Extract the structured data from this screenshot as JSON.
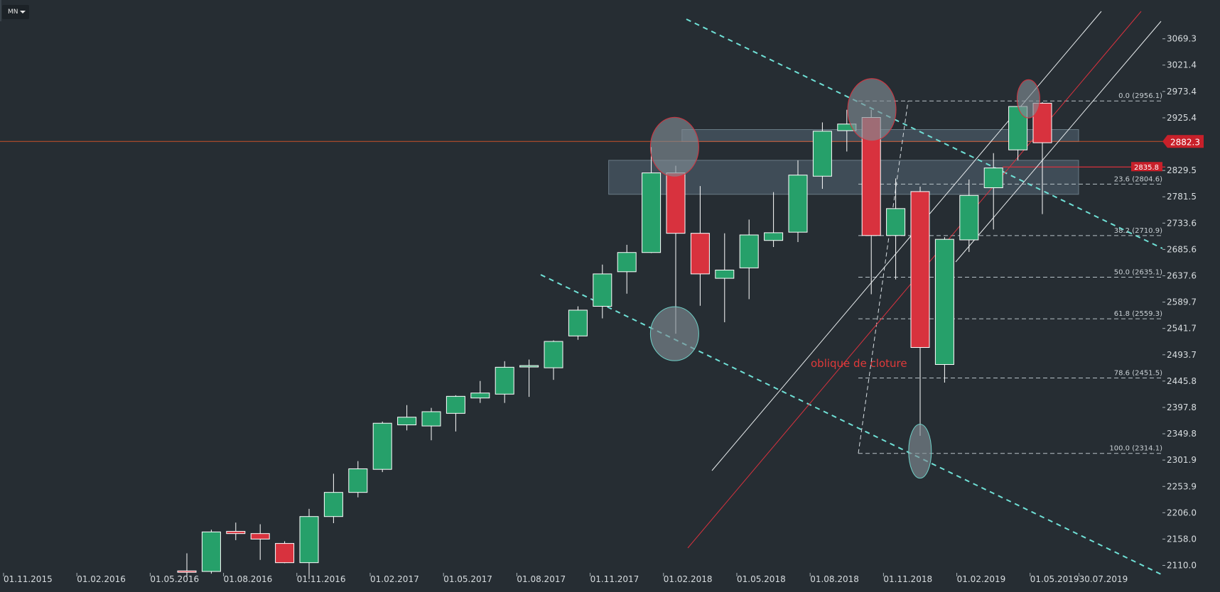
{
  "toolbar": {
    "timeframe_label": "MN"
  },
  "colors": {
    "background": "#262d33",
    "bull": "#26a06a",
    "bear": "#d8323e",
    "wick": "#ffffff",
    "trend_dashed": "#6fe0d6",
    "zone": "#5f7482",
    "ellipse": "#7f8c94",
    "annotation": "#e03a3a",
    "price_line": "#c8522a"
  },
  "chart_data": {
    "type": "candlestick",
    "title": "",
    "timeframe": "MN",
    "yaxis": {
      "range": [
        2090,
        3140
      ],
      "ticks": [
        "3069.3",
        "3021.4",
        "2973.4",
        "2925.4",
        "2829.5",
        "2781.5",
        "2733.6",
        "2685.6",
        "2637.6",
        "2589.7",
        "2541.7",
        "2493.7",
        "2445.8",
        "2397.8",
        "2349.8",
        "2301.9",
        "2253.9",
        "2206.0",
        "2158.0",
        "2110.0"
      ]
    },
    "xaxis": {
      "start": "2015-11-01",
      "labels": [
        "01.11.2015",
        "01.02.2016",
        "01.05.2016",
        "01.08.2016",
        "01.11.2016",
        "01.02.2017",
        "01.05.2017",
        "01.08.2017",
        "01.11.2017",
        "01.02.2018",
        "01.05.2018",
        "01.08.2018",
        "01.11.2018",
        "01.02.2019",
        "01.05.2019",
        "30.07.2019"
      ]
    },
    "candles": [
      {
        "date": "2016-06",
        "open": 2100,
        "high": 2132,
        "low": 2090,
        "close": 2098
      },
      {
        "date": "2016-07",
        "open": 2099,
        "high": 2175,
        "low": 2095,
        "close": 2171
      },
      {
        "date": "2016-08",
        "open": 2172,
        "high": 2188,
        "low": 2156,
        "close": 2168
      },
      {
        "date": "2016-09",
        "open": 2168,
        "high": 2185,
        "low": 2120,
        "close": 2158
      },
      {
        "date": "2016-10",
        "open": 2150,
        "high": 2154,
        "low": 2114,
        "close": 2115
      },
      {
        "date": "2016-11",
        "open": 2115,
        "high": 2213,
        "low": 2085,
        "close": 2199
      },
      {
        "date": "2016-12",
        "open": 2199,
        "high": 2277,
        "low": 2187,
        "close": 2243
      },
      {
        "date": "2017-01",
        "open": 2243,
        "high": 2300,
        "low": 2234,
        "close": 2286
      },
      {
        "date": "2017-02",
        "open": 2285,
        "high": 2372,
        "low": 2280,
        "close": 2369
      },
      {
        "date": "2017-03",
        "open": 2366,
        "high": 2402,
        "low": 2356,
        "close": 2380
      },
      {
        "date": "2017-04",
        "open": 2364,
        "high": 2397,
        "low": 2338,
        "close": 2390
      },
      {
        "date": "2017-05",
        "open": 2387,
        "high": 2420,
        "low": 2354,
        "close": 2418
      },
      {
        "date": "2017-06",
        "open": 2415,
        "high": 2446,
        "low": 2406,
        "close": 2424
      },
      {
        "date": "2017-07",
        "open": 2422,
        "high": 2482,
        "low": 2406,
        "close": 2471
      },
      {
        "date": "2017-08",
        "open": 2473,
        "high": 2485,
        "low": 2417,
        "close": 2474
      },
      {
        "date": "2017-09",
        "open": 2470,
        "high": 2520,
        "low": 2448,
        "close": 2518
      },
      {
        "date": "2017-10",
        "open": 2528,
        "high": 2582,
        "low": 2521,
        "close": 2575
      },
      {
        "date": "2017-11",
        "open": 2582,
        "high": 2658,
        "low": 2560,
        "close": 2641
      },
      {
        "date": "2017-12",
        "open": 2645,
        "high": 2694,
        "low": 2605,
        "close": 2680
      },
      {
        "date": "2018-01",
        "open": 2680,
        "high": 2872,
        "low": 2679,
        "close": 2825
      },
      {
        "date": "2018-02",
        "open": 2825,
        "high": 2838,
        "low": 2532,
        "close": 2715
      },
      {
        "date": "2018-03",
        "open": 2715,
        "high": 2801,
        "low": 2583,
        "close": 2641
      },
      {
        "date": "2018-04",
        "open": 2633,
        "high": 2715,
        "low": 2553,
        "close": 2648
      },
      {
        "date": "2018-05",
        "open": 2652,
        "high": 2740,
        "low": 2595,
        "close": 2712
      },
      {
        "date": "2018-06",
        "open": 2702,
        "high": 2790,
        "low": 2690,
        "close": 2716
      },
      {
        "date": "2018-07",
        "open": 2717,
        "high": 2848,
        "low": 2699,
        "close": 2821
      },
      {
        "date": "2018-08",
        "open": 2819,
        "high": 2917,
        "low": 2796,
        "close": 2901
      },
      {
        "date": "2018-09",
        "open": 2902,
        "high": 2940,
        "low": 2864,
        "close": 2914
      },
      {
        "date": "2018-10",
        "open": 2926,
        "high": 2940,
        "low": 2604,
        "close": 2711
      },
      {
        "date": "2018-11",
        "open": 2711,
        "high": 2815,
        "low": 2631,
        "close": 2760
      },
      {
        "date": "2018-12",
        "open": 2791,
        "high": 2800,
        "low": 2346,
        "close": 2507
      },
      {
        "date": "2019-01",
        "open": 2476,
        "high": 2708,
        "low": 2443,
        "close": 2704
      },
      {
        "date": "2019-02",
        "open": 2703,
        "high": 2813,
        "low": 2681,
        "close": 2784
      },
      {
        "date": "2019-03",
        "open": 2798,
        "high": 2861,
        "low": 2722,
        "close": 2834
      },
      {
        "date": "2019-04",
        "open": 2867,
        "high": 2949,
        "low": 2848,
        "close": 2946
      },
      {
        "date": "2019-05",
        "open": 2952,
        "high": 2954,
        "low": 2750,
        "close": 2880
      }
    ],
    "current_price": "2882.3",
    "marker_price": "2835.8",
    "fibonacci": [
      {
        "label": "0.0 (2956.1)",
        "value": 2956.1
      },
      {
        "label": "23.6 (2804.6)",
        "value": 2804.6
      },
      {
        "label": "38.2 (2710.9)",
        "value": 2710.9
      },
      {
        "label": "50.0 (2635.1)",
        "value": 2635.1
      },
      {
        "label": "61.8 (2559.3)",
        "value": 2559.3
      },
      {
        "label": "78.6 (2451.5)",
        "value": 2451.5
      },
      {
        "label": "100.0 (2314.1)",
        "value": 2314.1
      }
    ],
    "zones": [
      {
        "from": "2017-11",
        "to": "2019-08",
        "low": 2786,
        "high": 2848
      },
      {
        "from": "2018-02",
        "to": "2019-08",
        "low": 2882,
        "high": 2904
      }
    ],
    "annotation": "oblique de cloture"
  }
}
